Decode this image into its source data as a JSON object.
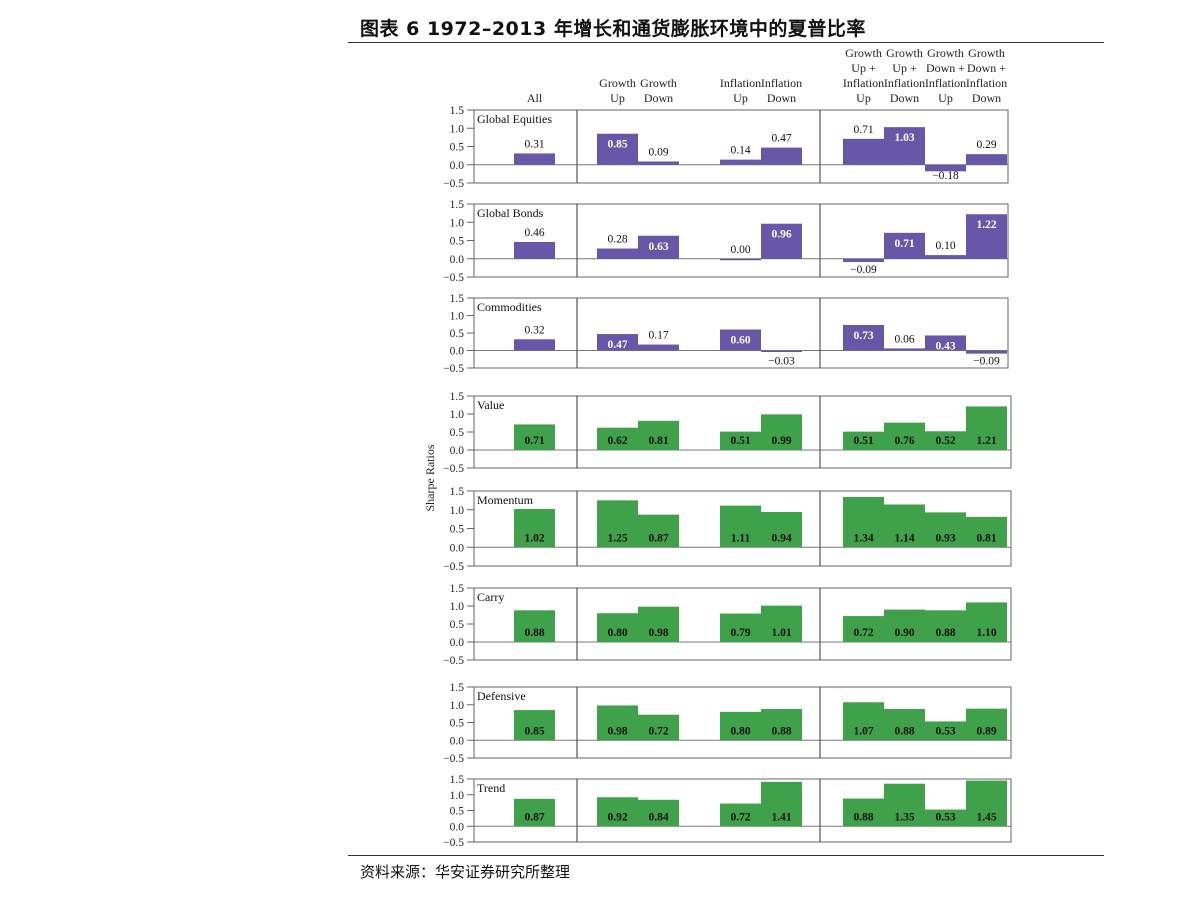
{
  "title": "图表 6 1972–2013 年增长和通货膨胀环境中的夏普比率",
  "source": "资料来源：华安证券研究所整理",
  "colors": {
    "purple": "#6857a8",
    "green": "#3fa14a",
    "border": "#666666"
  },
  "chart_data": {
    "type": "bar",
    "ylabel": "Sharpe Ratios",
    "ylim": [
      -0.5,
      1.5
    ],
    "yticks": [
      "1.5",
      "1.0",
      "0.5",
      "0.0",
      "−0.5"
    ],
    "column_headers": [
      [
        "All"
      ],
      [
        "Growth",
        "Up"
      ],
      [
        "Growth",
        "Down"
      ],
      [
        "Inflation",
        "Up"
      ],
      [
        "Inflation",
        "Down"
      ],
      [
        "Growth",
        "Up +",
        "Inflation",
        "Up"
      ],
      [
        "Growth",
        "Up +",
        "Inflation",
        "Down"
      ],
      [
        "Growth",
        "Down +",
        "Inflation",
        "Up"
      ],
      [
        "Growth",
        "Down +",
        "Inflation",
        "Down"
      ]
    ],
    "panels": [
      {
        "name": "Global Equities",
        "group": "assets",
        "values": [
          0.31,
          0.85,
          0.09,
          0.14,
          0.47,
          0.71,
          1.03,
          -0.18,
          0.29
        ],
        "labels": [
          "0.31",
          "0.85",
          "0.09",
          "0.14",
          "0.47",
          "0.71",
          "1.03",
          "−0.18",
          "0.29"
        ],
        "inside": [
          false,
          true,
          false,
          false,
          false,
          false,
          true,
          false,
          false
        ]
      },
      {
        "name": "Global  Bonds",
        "group": "assets",
        "values": [
          0.46,
          0.28,
          0.63,
          0.0,
          0.96,
          -0.09,
          0.71,
          0.1,
          1.22
        ],
        "labels": [
          "0.46",
          "0.28",
          "0.63",
          "0.00",
          "0.96",
          "−0.09",
          "0.71",
          "0.10",
          "1.22"
        ],
        "inside": [
          false,
          false,
          true,
          false,
          true,
          false,
          true,
          false,
          true
        ]
      },
      {
        "name": "Commodities",
        "group": "assets",
        "values": [
          0.32,
          0.47,
          0.17,
          0.6,
          -0.03,
          0.73,
          0.06,
          0.43,
          -0.09
        ],
        "labels": [
          "0.32",
          "0.47",
          "0.17",
          "0.60",
          "−0.03",
          "0.73",
          "0.06",
          "0.43",
          "−0.09"
        ],
        "inside": [
          false,
          true,
          false,
          true,
          false,
          true,
          false,
          true,
          false
        ]
      },
      {
        "name": "Value",
        "group": "styles",
        "values": [
          0.71,
          0.62,
          0.81,
          0.51,
          0.99,
          0.51,
          0.76,
          0.52,
          1.21
        ],
        "labels": [
          "0.71",
          "0.62",
          "0.81",
          "0.51",
          "0.99",
          "0.51",
          "0.76",
          "0.52",
          "1.21"
        ]
      },
      {
        "name": "Momentum",
        "group": "styles",
        "values": [
          1.02,
          1.25,
          0.87,
          1.11,
          0.94,
          1.34,
          1.14,
          0.93,
          0.81
        ],
        "labels": [
          "1.02",
          "1.25",
          "0.87",
          "1.11",
          "0.94",
          "1.34",
          "1.14",
          "0.93",
          "0.81"
        ]
      },
      {
        "name": "Carry",
        "group": "styles",
        "values": [
          0.88,
          0.8,
          0.98,
          0.79,
          1.01,
          0.72,
          0.9,
          0.88,
          1.1
        ],
        "labels": [
          "0.88",
          "0.80",
          "0.98",
          "0.79",
          "1.01",
          "0.72",
          "0.90",
          "0.88",
          "1.10"
        ]
      },
      {
        "name": "Defensive",
        "group": "styles",
        "values": [
          0.85,
          0.98,
          0.72,
          0.8,
          0.88,
          1.07,
          0.88,
          0.53,
          0.89
        ],
        "labels": [
          "0.85",
          "0.98",
          "0.72",
          "0.80",
          "0.88",
          "1.07",
          "0.88",
          "0.53",
          "0.89"
        ]
      },
      {
        "name": "Trend",
        "group": "styles",
        "values": [
          0.87,
          0.92,
          0.84,
          0.72,
          1.41,
          0.88,
          1.35,
          0.53,
          1.45
        ],
        "labels": [
          "0.87",
          "0.92",
          "0.84",
          "0.72",
          "1.41",
          "0.88",
          "1.35",
          "0.53",
          "1.45"
        ]
      }
    ]
  }
}
